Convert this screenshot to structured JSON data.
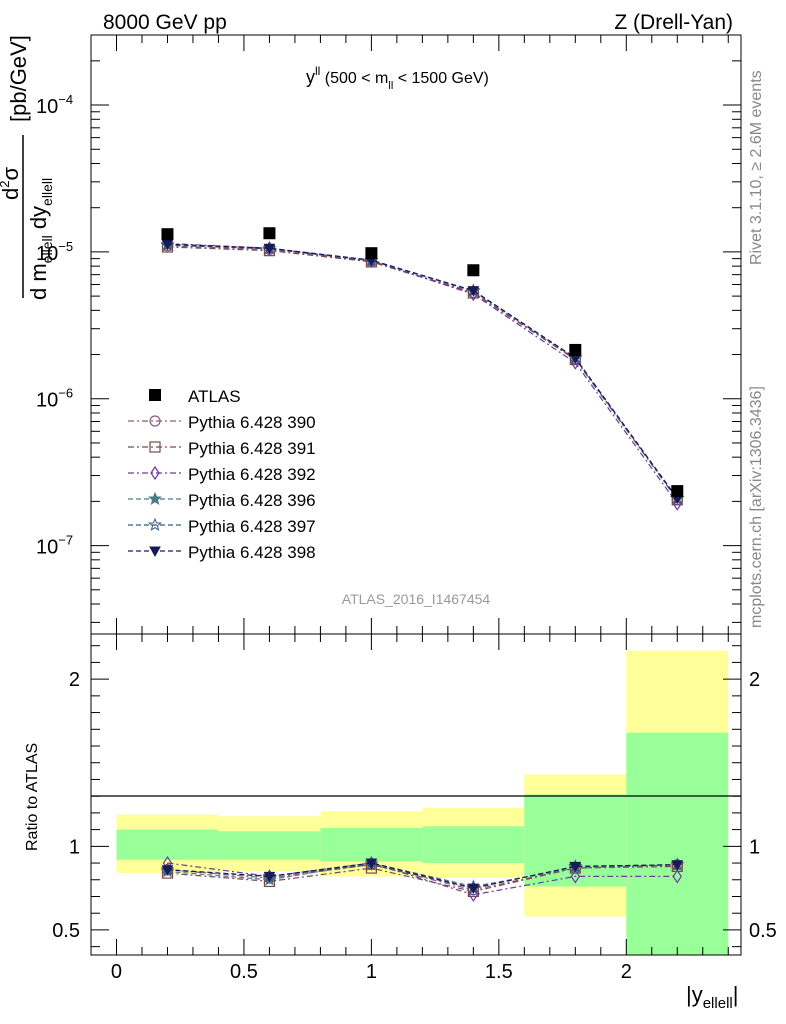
{
  "header": {
    "energy_label": "8000 GeV pp",
    "process_label": "Z (Drell-Yan)"
  },
  "side_labels": {
    "rivet": "Rivet 3.1.10, ≥ 2.6M events",
    "mcplots": "mcplots.cern.ch [arXiv:1306.3436]"
  },
  "chart_data": [
    {
      "type": "scatter",
      "title": "y^ll (500 < m_ll < 1500 GeV)",
      "title_main": "y",
      "title_sup": "ll",
      "title_rest1": " (500 < m",
      "title_sub": "ll",
      "title_rest2": " < 1500 GeV)",
      "analysis_label": "ATLAS_2016_I1467454",
      "ylabel": "d²σ / d m_ellell dy_ellell [pb/GeV]",
      "ylabel_parts": {
        "num_d": "d",
        "num_sup": "2",
        "num_sigma": "σ",
        "den_d1": "d m",
        "den_sub1": "ellell",
        "den_d2": " dy",
        "den_sub2": "ellell",
        "unit": "[pb/GeV]"
      },
      "yscale": "log",
      "ylim": [
        2.5e-08,
        0.0003
      ],
      "xlim": [
        -0.1,
        2.45
      ],
      "ytick_labels": [
        {
          "base": "10",
          "exp": "−4"
        },
        {
          "base": "10",
          "exp": "−5"
        },
        {
          "base": "10",
          "exp": "−6"
        },
        {
          "base": "10",
          "exp": "−7"
        }
      ],
      "x": [
        0.2,
        0.6,
        1.0,
        1.4,
        1.8,
        2.2
      ],
      "data": {
        "name": "ATLAS",
        "values": [
          1.32e-05,
          1.34e-05,
          9.8e-06,
          7.5e-06,
          2.15e-06,
          2.35e-07
        ]
      },
      "series": [
        {
          "name": "Pythia 6.428 390",
          "color": "#8e5a7a",
          "marker": "circle-open",
          "dash": "6,3,2,3",
          "values": [
            1.1e-05,
            1.04e-05,
            8.65e-06,
            5.3e-06,
            1.87e-06,
            2.06e-07
          ]
        },
        {
          "name": "Pythia 6.428 391",
          "color": "#7a4a4a",
          "marker": "square-open",
          "dash": "6,3,2,3",
          "values": [
            1.08e-05,
            1.02e-05,
            8.55e-06,
            5.25e-06,
            1.85e-06,
            2.05e-07
          ]
        },
        {
          "name": "Pythia 6.428 392",
          "color": "#6a3aa0",
          "marker": "diamond-open",
          "dash": "6,3,2,3",
          "values": [
            1.14e-05,
            1.06e-05,
            8.7e-06,
            5.15e-06,
            1.76e-06,
            1.93e-07
          ]
        },
        {
          "name": "Pythia 6.428 396",
          "color": "#4a7a8a",
          "marker": "star-filled",
          "dash": "5,3",
          "values": [
            1.12e-05,
            1.05e-05,
            8.75e-06,
            5.4e-06,
            1.88e-06,
            2.08e-07
          ]
        },
        {
          "name": "Pythia 6.428 397",
          "color": "#3a5a7a",
          "marker": "star-open",
          "dash": "5,3",
          "values": [
            1.11e-05,
            1.05e-05,
            8.7e-06,
            5.45e-06,
            1.89e-06,
            2.09e-07
          ]
        },
        {
          "name": "Pythia 6.428 398",
          "color": "#1a1a5a",
          "marker": "triangle-down-filled",
          "dash": "5,3",
          "values": [
            1.13e-05,
            1.06e-05,
            8.8e-06,
            5.45e-06,
            1.9e-06,
            2.1e-07
          ]
        }
      ],
      "legend_position": "left-middle"
    },
    {
      "type": "scatter",
      "ylabel": "Ratio to ATLAS",
      "xlabel": "|y_ellell|",
      "xlabel_main": "|y",
      "xlabel_sub": "ellell",
      "xlabel_end": "|",
      "ylim": [
        0.35,
        2.27
      ],
      "xlim": [
        -0.1,
        2.45
      ],
      "yticks": [
        "0.5",
        "1",
        "2"
      ],
      "xticks": [
        "0",
        "0.5",
        "1",
        "1.5",
        "2"
      ],
      "bins": [
        [
          0.0,
          0.4
        ],
        [
          0.4,
          0.8
        ],
        [
          0.8,
          1.2
        ],
        [
          1.2,
          1.6
        ],
        [
          1.6,
          2.0
        ],
        [
          2.0,
          2.4
        ]
      ],
      "band_yellow": [
        [
          0.84,
          1.19
        ],
        [
          0.85,
          1.18
        ],
        [
          0.82,
          1.21
        ],
        [
          0.81,
          1.23
        ],
        [
          0.58,
          1.43
        ],
        [
          0.35,
          2.17
        ]
      ],
      "band_green": [
        [
          0.92,
          1.1
        ],
        [
          0.92,
          1.09
        ],
        [
          0.91,
          1.11
        ],
        [
          0.9,
          1.12
        ],
        [
          0.76,
          1.31
        ],
        [
          0.35,
          1.68
        ]
      ],
      "x": [
        0.2,
        0.6,
        1.0,
        1.4,
        1.8,
        2.2
      ],
      "series": [
        {
          "name": "Pythia 6.428 390",
          "values": [
            0.86,
            0.81,
            0.89,
            0.74,
            0.87,
            0.89
          ]
        },
        {
          "name": "Pythia 6.428 391",
          "values": [
            0.84,
            0.79,
            0.87,
            0.73,
            0.87,
            0.88
          ]
        },
        {
          "name": "Pythia 6.428 392",
          "values": [
            0.9,
            0.82,
            0.9,
            0.71,
            0.82,
            0.82
          ]
        },
        {
          "name": "Pythia 6.428 396",
          "values": [
            0.85,
            0.8,
            0.9,
            0.76,
            0.87,
            0.89
          ]
        },
        {
          "name": "Pythia 6.428 397",
          "values": [
            0.86,
            0.82,
            0.89,
            0.75,
            0.88,
            0.89
          ]
        },
        {
          "name": "Pythia 6.428 398",
          "values": [
            0.86,
            0.82,
            0.9,
            0.75,
            0.88,
            0.89
          ]
        }
      ]
    }
  ]
}
